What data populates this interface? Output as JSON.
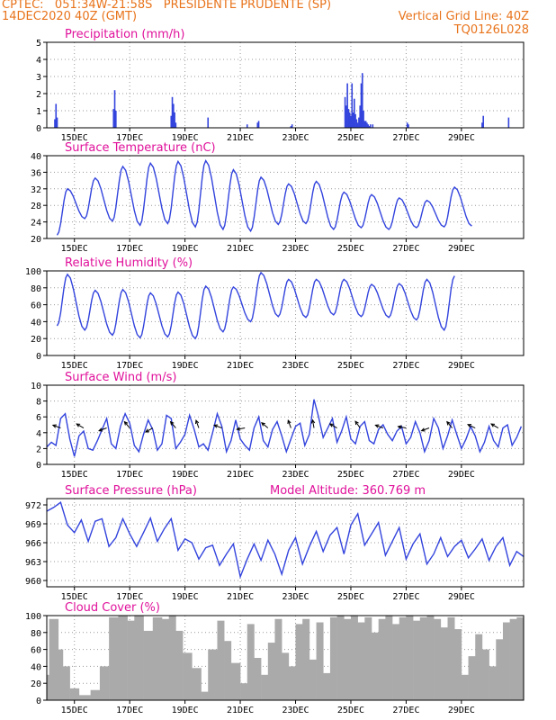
{
  "header": {
    "line1_left": "CPTEC:   051:34W-21:58S   PRESIDENTE PRUDENTE (SP)",
    "line2_left": "14DEC2020 40Z (GMT)",
    "line2_right": "Vertical Grid Line: 40Z",
    "line3_right": "TQ0126L028"
  },
  "colors": {
    "line": "#3344dd",
    "bar": "#3344dd",
    "cloud": "#aaaaaa",
    "title": "#e0119b",
    "header": "#e8741c"
  },
  "chart_data": [
    {
      "type": "bar",
      "title": "Precipitation (mm/h)",
      "ylim": [
        0,
        5
      ],
      "yticks": [
        0,
        1,
        2,
        3,
        4,
        5
      ],
      "xticks": [
        "15DEC",
        "17DEC",
        "19DEC",
        "21DEC",
        "23DEC",
        "25DEC",
        "27DEC",
        "29DEC"
      ],
      "x_unit": "hours since 14DEC 00Z",
      "x": [
        7,
        8,
        9,
        58,
        59,
        60,
        108,
        109,
        110,
        111,
        112,
        140,
        174,
        183,
        184,
        212,
        213,
        259,
        260,
        261,
        262,
        263,
        264,
        265,
        266,
        267,
        268,
        269,
        270,
        271,
        272,
        273,
        274,
        275,
        276,
        277,
        278,
        279,
        280,
        281,
        283,
        313,
        314,
        378,
        379,
        401
      ],
      "values": [
        0.5,
        1.4,
        0.6,
        1.1,
        2.2,
        1.0,
        0.7,
        1.8,
        1.4,
        0.9,
        0.3,
        0.6,
        0.2,
        0.3,
        0.4,
        0.1,
        0.2,
        1.8,
        1.3,
        2.6,
        1.1,
        0.9,
        0.7,
        2.6,
        0.9,
        1.7,
        0.8,
        0.5,
        0.3,
        0.6,
        1.3,
        2.6,
        3.2,
        1.0,
        0.4,
        0.4,
        0.3,
        0.2,
        0.1,
        0.2,
        0.2,
        0.3,
        0.2,
        0.3,
        0.7,
        0.6
      ]
    },
    {
      "type": "line",
      "title": "Surface Temperature (nC)",
      "ylim": [
        20,
        40
      ],
      "yticks": [
        20,
        24,
        28,
        32,
        36,
        40
      ],
      "xticks": [
        "15DEC",
        "17DEC",
        "19DEC",
        "21DEC",
        "23DEC",
        "25DEC",
        "27DEC",
        "29DEC"
      ],
      "daily_min": [
        20.8,
        24.8,
        24.2,
        23.2,
        23.6,
        22.8,
        22.2,
        21.8,
        23.4,
        23.6,
        22.2,
        22.6,
        22.2,
        22.6,
        22.8,
        23.0
      ],
      "daily_max": [
        32.0,
        34.6,
        37.4,
        38.2,
        38.6,
        38.8,
        36.6,
        34.8,
        33.2,
        33.8,
        31.2,
        30.6,
        29.8,
        29.2,
        32.4
      ]
    },
    {
      "type": "line",
      "title": "Relative Humidity (%)",
      "ylim": [
        0,
        100
      ],
      "yticks": [
        0,
        20,
        40,
        60,
        80,
        100
      ],
      "xticks": [
        "15DEC",
        "17DEC",
        "19DEC",
        "21DEC",
        "23DEC",
        "25DEC",
        "27DEC",
        "29DEC"
      ],
      "daily_min": [
        35,
        30,
        24,
        21,
        22,
        20,
        28,
        40,
        46,
        45,
        48,
        46,
        45,
        42,
        30
      ],
      "daily_max": [
        96,
        77,
        78,
        74,
        75,
        82,
        81,
        98,
        90,
        90,
        90,
        84,
        85,
        90,
        94
      ]
    },
    {
      "type": "line",
      "title": "Surface Wind (m/s)",
      "ylim": [
        0,
        10
      ],
      "yticks": [
        0,
        2,
        4,
        6,
        8,
        10
      ],
      "xticks": [
        "15DEC",
        "17DEC",
        "19DEC",
        "21DEC",
        "23DEC",
        "25DEC",
        "27DEC",
        "29DEC"
      ],
      "x_unit": "hours since 14DEC 00Z",
      "x": [
        0,
        4,
        8,
        12,
        16,
        20,
        24,
        28,
        32,
        36,
        40,
        44,
        48,
        52,
        56,
        60,
        64,
        68,
        72,
        76,
        80,
        84,
        88,
        92,
        96,
        100,
        104,
        108,
        112,
        116,
        120,
        124,
        128,
        132,
        136,
        140,
        144,
        148,
        152,
        156,
        160,
        164,
        168,
        172,
        176,
        180,
        184,
        188,
        192,
        196,
        200,
        204,
        208,
        212,
        216,
        220,
        224,
        228,
        232,
        236,
        240,
        244,
        248,
        252,
        256,
        260,
        264,
        268,
        272,
        276,
        280,
        284,
        288,
        292,
        296,
        300,
        304,
        308,
        312,
        316,
        320,
        324,
        328,
        332,
        336,
        340,
        344,
        348,
        352,
        356,
        360,
        364,
        368,
        372,
        376,
        380,
        384,
        388,
        392,
        396,
        400,
        404,
        408,
        412
      ],
      "values": [
        2.2,
        2.8,
        2.4,
        5.8,
        6.4,
        3.2,
        1.0,
        3.6,
        4.2,
        2.0,
        1.8,
        3.0,
        4.4,
        5.8,
        2.6,
        2.0,
        4.8,
        6.4,
        5.2,
        2.4,
        1.6,
        3.8,
        5.6,
        4.4,
        1.8,
        2.6,
        6.2,
        5.8,
        2.0,
        2.8,
        3.8,
        6.2,
        4.4,
        2.2,
        2.6,
        1.8,
        4.0,
        6.4,
        4.8,
        1.6,
        3.0,
        5.6,
        3.2,
        2.4,
        1.8,
        4.6,
        6.0,
        3.0,
        2.2,
        4.4,
        5.4,
        3.6,
        1.6,
        3.2,
        4.8,
        5.2,
        2.4,
        3.8,
        8.2,
        6.0,
        3.4,
        4.6,
        5.8,
        2.8,
        4.2,
        6.0,
        3.2,
        2.6,
        4.8,
        5.4,
        3.0,
        2.6,
        4.4,
        5.0,
        3.8,
        3.0,
        4.2,
        4.8,
        2.6,
        3.4,
        5.4,
        4.0,
        1.6,
        3.0,
        5.8,
        4.6,
        2.0,
        3.6,
        5.6,
        3.8,
        2.0,
        3.2,
        4.8,
        3.6,
        1.6,
        2.8,
        4.8,
        3.0,
        2.2,
        4.6,
        5.0,
        2.4,
        3.4,
        4.8
      ]
    },
    {
      "type": "line",
      "title": "Surface Pressure (hPa)",
      "annotation": "Model Altitude: 360.769 m",
      "ylim": [
        959,
        973
      ],
      "yticks": [
        960,
        963,
        966,
        969,
        972
      ],
      "xticks": [
        "15DEC",
        "17DEC",
        "19DEC",
        "21DEC",
        "23DEC",
        "25DEC",
        "27DEC",
        "29DEC"
      ],
      "x_unit": "hours since 14DEC 00Z",
      "x": [
        0,
        6,
        12,
        18,
        24,
        30,
        36,
        42,
        48,
        54,
        60,
        66,
        72,
        78,
        84,
        90,
        96,
        102,
        108,
        114,
        120,
        126,
        132,
        138,
        144,
        150,
        156,
        162,
        168,
        174,
        180,
        186,
        192,
        198,
        204,
        210,
        216,
        222,
        228,
        234,
        240,
        246,
        252,
        258,
        264,
        270,
        276,
        282,
        288,
        294,
        300,
        306,
        312,
        318,
        324,
        330,
        336,
        342,
        348,
        354,
        360,
        366,
        372,
        378,
        384,
        390,
        396,
        402,
        408,
        414
      ],
      "values": [
        971.0,
        971.6,
        972.4,
        968.8,
        967.6,
        969.6,
        966.2,
        969.4,
        969.8,
        965.4,
        966.8,
        969.8,
        967.4,
        965.4,
        967.6,
        969.9,
        966.2,
        968.2,
        969.8,
        964.8,
        966.6,
        966.0,
        963.4,
        965.2,
        965.6,
        962.4,
        964.2,
        965.8,
        960.6,
        963.4,
        965.8,
        963.2,
        966.4,
        964.2,
        961.0,
        964.8,
        966.8,
        962.6,
        965.4,
        967.8,
        964.6,
        967.2,
        968.4,
        964.2,
        968.8,
        970.6,
        965.6,
        967.4,
        969.2,
        964.0,
        966.2,
        968.4,
        963.4,
        965.8,
        967.4,
        962.6,
        964.2,
        966.8,
        963.8,
        965.4,
        966.4,
        963.6,
        965.0,
        966.6,
        963.2,
        965.4,
        966.8,
        962.4,
        964.6,
        963.8
      ]
    },
    {
      "type": "area",
      "title": "Cloud Cover (%)",
      "ylim": [
        0,
        100
      ],
      "yticks": [
        0,
        20,
        40,
        60,
        80,
        100
      ],
      "xticks": [
        "15DEC",
        "17DEC",
        "19DEC",
        "21DEC",
        "23DEC",
        "25DEC",
        "27DEC",
        "29DEC"
      ],
      "x_unit": "hours since 14DEC 00Z",
      "segments": [
        [
          0,
          2,
          30
        ],
        [
          2,
          10,
          96
        ],
        [
          10,
          14,
          60
        ],
        [
          14,
          20,
          40
        ],
        [
          20,
          28,
          14
        ],
        [
          28,
          38,
          6
        ],
        [
          38,
          46,
          12
        ],
        [
          46,
          54,
          40
        ],
        [
          54,
          62,
          98
        ],
        [
          62,
          70,
          100
        ],
        [
          70,
          76,
          94
        ],
        [
          76,
          84,
          100
        ],
        [
          84,
          92,
          82
        ],
        [
          92,
          100,
          98
        ],
        [
          100,
          106,
          96
        ],
        [
          106,
          112,
          100
        ],
        [
          112,
          118,
          82
        ],
        [
          118,
          126,
          56
        ],
        [
          126,
          134,
          38
        ],
        [
          134,
          140,
          10
        ],
        [
          140,
          148,
          60
        ],
        [
          148,
          154,
          94
        ],
        [
          154,
          160,
          70
        ],
        [
          160,
          168,
          44
        ],
        [
          168,
          174,
          20
        ],
        [
          174,
          180,
          90
        ],
        [
          180,
          186,
          50
        ],
        [
          186,
          192,
          30
        ],
        [
          192,
          198,
          68
        ],
        [
          198,
          204,
          96
        ],
        [
          204,
          210,
          56
        ],
        [
          210,
          216,
          40
        ],
        [
          216,
          222,
          90
        ],
        [
          222,
          228,
          96
        ],
        [
          228,
          234,
          48
        ],
        [
          234,
          240,
          92
        ],
        [
          240,
          246,
          32
        ],
        [
          246,
          252,
          98
        ],
        [
          252,
          258,
          100
        ],
        [
          258,
          264,
          96
        ],
        [
          264,
          270,
          100
        ],
        [
          270,
          276,
          92
        ],
        [
          276,
          282,
          98
        ],
        [
          282,
          288,
          80
        ],
        [
          288,
          294,
          96
        ],
        [
          294,
          300,
          100
        ],
        [
          300,
          306,
          90
        ],
        [
          306,
          312,
          98
        ],
        [
          312,
          318,
          100
        ],
        [
          318,
          324,
          94
        ],
        [
          324,
          330,
          98
        ],
        [
          330,
          336,
          100
        ],
        [
          336,
          342,
          96
        ],
        [
          342,
          348,
          86
        ],
        [
          348,
          354,
          98
        ],
        [
          354,
          360,
          84
        ],
        [
          360,
          366,
          30
        ],
        [
          366,
          372,
          52
        ],
        [
          372,
          378,
          78
        ],
        [
          378,
          384,
          60
        ],
        [
          384,
          390,
          40
        ],
        [
          390,
          396,
          72
        ],
        [
          396,
          402,
          92
        ],
        [
          402,
          408,
          96
        ],
        [
          408,
          414,
          98
        ]
      ]
    }
  ]
}
